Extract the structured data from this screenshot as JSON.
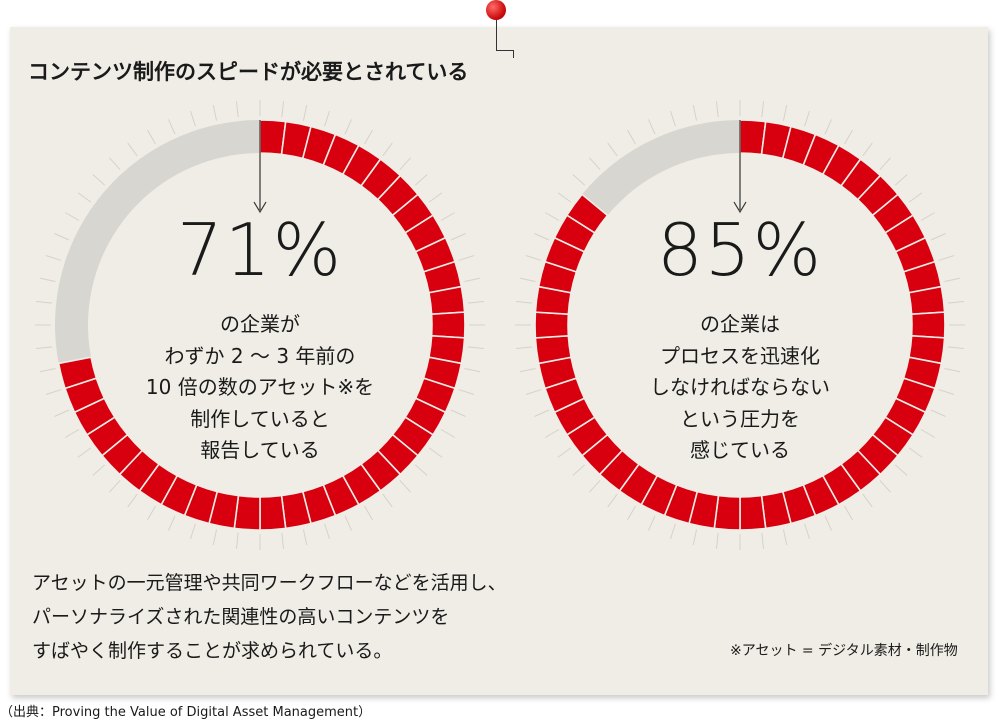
{
  "title": "コンテンツ制作のスピードが必要とされている",
  "chart_data": [
    {
      "type": "pie",
      "value": 71,
      "value_label": "71%",
      "caption_lines": [
        "の企業が",
        "わずか 2 ～ 3 年前の",
        "10 倍の数のアセット※を",
        "制作していると",
        "報告している"
      ],
      "colors": {
        "filled": "#d8000f",
        "empty": "#d8d6d0"
      }
    },
    {
      "type": "pie",
      "value": 85,
      "value_label": "85%",
      "caption_lines": [
        "の企業は",
        "プロセスを迅速化",
        "しなければならない",
        "という圧力を",
        "感じている"
      ],
      "colors": {
        "filled": "#d8000f",
        "empty": "#d8d6d0"
      }
    }
  ],
  "footer_lines": [
    "アセットの一元管理や共同ワークフローなどを活用し、",
    "パーソナライズされた関連性の高いコンテンツを",
    "すばやく制作することが求められている。"
  ],
  "note": "※アセット = デジタル素材・制作物",
  "source": "（出典：Proving the Value of Digital Asset Management）"
}
